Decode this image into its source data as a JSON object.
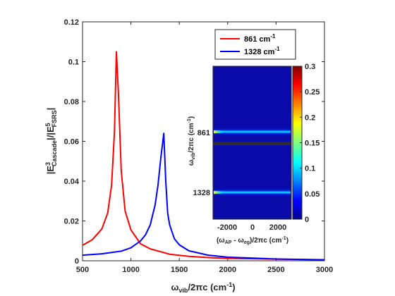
{
  "chart_data": {
    "type": "line",
    "xlabel": {
      "pre": "ω",
      "sub": "vib",
      "post": "/2πc (cm",
      "sup": "-1",
      "end": ")"
    },
    "ylabel": {
      "p1": "|E",
      "sup1": "3",
      "sub1": "Cascade",
      "p2": "|/|E",
      "sup2": "5",
      "sub2": "FSRS",
      "p3": "|"
    },
    "xlim": [
      500,
      3000
    ],
    "ylim": [
      0,
      0.12
    ],
    "xticks": [
      500,
      1000,
      1500,
      2000,
      2500,
      3000
    ],
    "yticks": [
      0,
      0.02,
      0.04,
      0.06,
      0.08,
      0.1,
      0.12
    ],
    "ytick_labels": [
      "0",
      "0.02",
      "0.04",
      "0.06",
      "0.08",
      "0.1",
      "0.12"
    ],
    "series": [
      {
        "name": "861 cm",
        "sup": "-1",
        "color": "#ff0000",
        "x": [
          500,
          600,
          700,
          760,
          800,
          830,
          850,
          870,
          900,
          940,
          1000,
          1100,
          1200,
          1400,
          1600,
          1800,
          2000,
          2500,
          3000
        ],
        "y": [
          0.0078,
          0.0105,
          0.016,
          0.024,
          0.038,
          0.065,
          0.105,
          0.085,
          0.045,
          0.025,
          0.0155,
          0.0085,
          0.006,
          0.0033,
          0.0022,
          0.0016,
          0.0012,
          0.0008,
          0.0005
        ]
      },
      {
        "name": "1328 cm",
        "sup": "-1",
        "color": "#0000ff",
        "x": [
          500,
          700,
          900,
          1000,
          1100,
          1150,
          1200,
          1250,
          1280,
          1310,
          1340,
          1360,
          1380,
          1400,
          1450,
          1500,
          1600,
          1800,
          2000,
          2500,
          3000
        ],
        "y": [
          0.0028,
          0.0035,
          0.0048,
          0.0065,
          0.01,
          0.013,
          0.018,
          0.028,
          0.038,
          0.052,
          0.064,
          0.04,
          0.024,
          0.018,
          0.011,
          0.008,
          0.005,
          0.0028,
          0.0018,
          0.0009,
          0.0005
        ]
      }
    ],
    "legend_position": "top-right",
    "inset": {
      "type": "heatmap",
      "xlabel": {
        "p1": "(ω",
        "sub1": "AP",
        "p2": " - ω",
        "sub2": "eg",
        "p3": ")/2πc (cm",
        "sup": "-1",
        "p4": ")"
      },
      "ylabel": {
        "p1": "ω",
        "sub1": "vib",
        "p2": "/2πc (cm",
        "sup": "-1",
        "p3": ")"
      },
      "xticks": [
        "-2000",
        "0",
        "2000"
      ],
      "yticks": [
        "861",
        "1328"
      ],
      "colorbar_ticks": [
        "0",
        "0.05",
        "0.1",
        "0.15",
        "0.2",
        "0.25",
        "0.3"
      ],
      "colorbar_range": [
        0,
        0.3
      ],
      "colormap": "jet"
    }
  }
}
